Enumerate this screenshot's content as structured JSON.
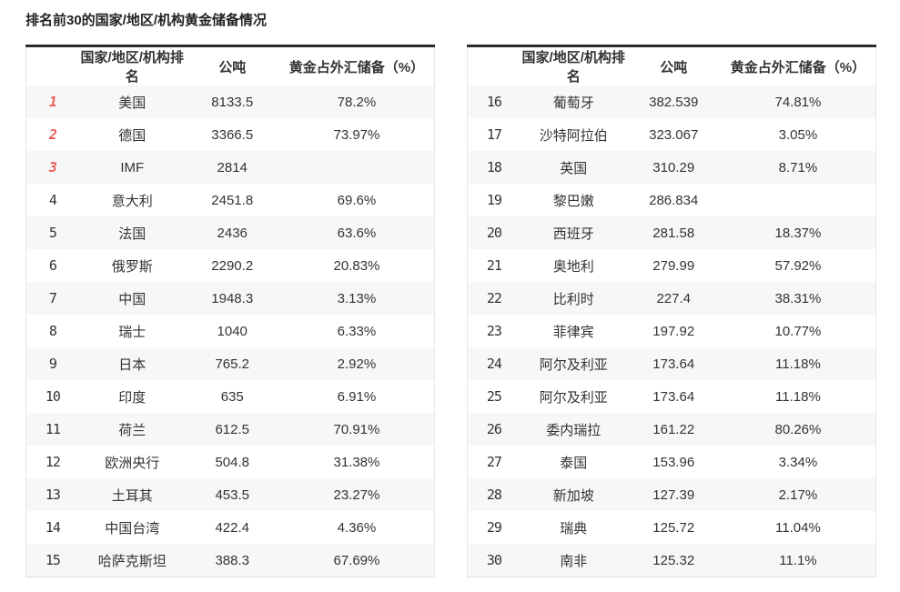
{
  "page": {
    "title": "排名前30的国家/地区/机构黄金储备情况"
  },
  "table": {
    "headers": {
      "rank": "",
      "country": "国家/地区/机构排名",
      "tonnes": "公吨",
      "pct": "黄金占外汇储备（%）"
    }
  },
  "left_rows": [
    {
      "rank": "1",
      "name": "美国",
      "tonnes": "8133.5",
      "pct": "78.2%",
      "highlight": true
    },
    {
      "rank": "2",
      "name": "德国",
      "tonnes": "3366.5",
      "pct": "73.97%",
      "highlight": true
    },
    {
      "rank": "3",
      "name": "IMF",
      "tonnes": "2814",
      "pct": "",
      "highlight": true
    },
    {
      "rank": "4",
      "name": "意大利",
      "tonnes": "2451.8",
      "pct": "69.6%",
      "highlight": false
    },
    {
      "rank": "5",
      "name": "法国",
      "tonnes": "2436",
      "pct": "63.6%",
      "highlight": false
    },
    {
      "rank": "6",
      "name": "俄罗斯",
      "tonnes": "2290.2",
      "pct": "20.83%",
      "highlight": false
    },
    {
      "rank": "7",
      "name": "中国",
      "tonnes": "1948.3",
      "pct": "3.13%",
      "highlight": false
    },
    {
      "rank": "8",
      "name": "瑞士",
      "tonnes": "1040",
      "pct": "6.33%",
      "highlight": false
    },
    {
      "rank": "9",
      "name": "日本",
      "tonnes": "765.2",
      "pct": "2.92%",
      "highlight": false
    },
    {
      "rank": "10",
      "name": "印度",
      "tonnes": "635",
      "pct": "6.91%",
      "highlight": false
    },
    {
      "rank": "11",
      "name": "荷兰",
      "tonnes": "612.5",
      "pct": "70.91%",
      "highlight": false
    },
    {
      "rank": "12",
      "name": "欧洲央行",
      "tonnes": "504.8",
      "pct": "31.38%",
      "highlight": false
    },
    {
      "rank": "13",
      "name": "土耳其",
      "tonnes": "453.5",
      "pct": "23.27%",
      "highlight": false
    },
    {
      "rank": "14",
      "name": "中国台湾",
      "tonnes": "422.4",
      "pct": "4.36%",
      "highlight": false
    },
    {
      "rank": "15",
      "name": "哈萨克斯坦",
      "tonnes": "388.3",
      "pct": "67.69%",
      "highlight": false
    }
  ],
  "right_rows": [
    {
      "rank": "16",
      "name": "葡萄牙",
      "tonnes": "382.539",
      "pct": "74.81%",
      "highlight": false
    },
    {
      "rank": "17",
      "name": "沙特阿拉伯",
      "tonnes": "323.067",
      "pct": "3.05%",
      "highlight": false
    },
    {
      "rank": "18",
      "name": "英国",
      "tonnes": "310.29",
      "pct": "8.71%",
      "highlight": false
    },
    {
      "rank": "19",
      "name": "黎巴嫩",
      "tonnes": "286.834",
      "pct": "",
      "highlight": false
    },
    {
      "rank": "20",
      "name": "西班牙",
      "tonnes": "281.58",
      "pct": "18.37%",
      "highlight": false
    },
    {
      "rank": "21",
      "name": "奥地利",
      "tonnes": "279.99",
      "pct": "57.92%",
      "highlight": false
    },
    {
      "rank": "22",
      "name": "比利时",
      "tonnes": "227.4",
      "pct": "38.31%",
      "highlight": false
    },
    {
      "rank": "23",
      "name": "菲律宾",
      "tonnes": "197.92",
      "pct": "10.77%",
      "highlight": false
    },
    {
      "rank": "24",
      "name": "阿尔及利亚",
      "tonnes": "173.64",
      "pct": "11.18%",
      "highlight": false
    },
    {
      "rank": "25",
      "name": "阿尔及利亚",
      "tonnes": "173.64",
      "pct": "11.18%",
      "highlight": false
    },
    {
      "rank": "26",
      "name": "委内瑞拉",
      "tonnes": "161.22",
      "pct": "80.26%",
      "highlight": false
    },
    {
      "rank": "27",
      "name": "泰国",
      "tonnes": "153.96",
      "pct": "3.34%",
      "highlight": false
    },
    {
      "rank": "28",
      "name": "新加坡",
      "tonnes": "127.39",
      "pct": "2.17%",
      "highlight": false
    },
    {
      "rank": "29",
      "name": "瑞典",
      "tonnes": "125.72",
      "pct": "11.04%",
      "highlight": false
    },
    {
      "rank": "30",
      "name": "南非",
      "tonnes": "125.32",
      "pct": "11.1%",
      "highlight": false
    }
  ],
  "colors": {
    "highlight_rank": "#e85d5d",
    "rank_gray": "#7b7b7b",
    "stripe": "#f7f7f7",
    "top_border": "#2b2b2b",
    "outer_border": "#e8e8e8",
    "text": "#333333"
  },
  "chart_data": {
    "type": "table",
    "title": "排名前30的国家/地区/机构黄金储备情况",
    "columns": [
      "排名",
      "国家/地区/机构",
      "公吨",
      "黄金占外汇储备（%）"
    ],
    "rows": [
      [
        1,
        "美国",
        8133.5,
        "78.2%"
      ],
      [
        2,
        "德国",
        3366.5,
        "73.97%"
      ],
      [
        3,
        "IMF",
        2814,
        ""
      ],
      [
        4,
        "意大利",
        2451.8,
        "69.6%"
      ],
      [
        5,
        "法国",
        2436,
        "63.6%"
      ],
      [
        6,
        "俄罗斯",
        2290.2,
        "20.83%"
      ],
      [
        7,
        "中国",
        1948.3,
        "3.13%"
      ],
      [
        8,
        "瑞士",
        1040,
        "6.33%"
      ],
      [
        9,
        "日本",
        765.2,
        "2.92%"
      ],
      [
        10,
        "印度",
        635,
        "6.91%"
      ],
      [
        11,
        "荷兰",
        612.5,
        "70.91%"
      ],
      [
        12,
        "欧洲央行",
        504.8,
        "31.38%"
      ],
      [
        13,
        "土耳其",
        453.5,
        "23.27%"
      ],
      [
        14,
        "中国台湾",
        422.4,
        "4.36%"
      ],
      [
        15,
        "哈萨克斯坦",
        388.3,
        "67.69%"
      ],
      [
        16,
        "葡萄牙",
        382.539,
        "74.81%"
      ],
      [
        17,
        "沙特阿拉伯",
        323.067,
        "3.05%"
      ],
      [
        18,
        "英国",
        310.29,
        "8.71%"
      ],
      [
        19,
        "黎巴嫩",
        286.834,
        ""
      ],
      [
        20,
        "西班牙",
        281.58,
        "18.37%"
      ],
      [
        21,
        "奥地利",
        279.99,
        "57.92%"
      ],
      [
        22,
        "比利时",
        227.4,
        "38.31%"
      ],
      [
        23,
        "菲律宾",
        197.92,
        "10.77%"
      ],
      [
        24,
        "阿尔及利亚",
        173.64,
        "11.18%"
      ],
      [
        25,
        "阿尔及利亚",
        173.64,
        "11.18%"
      ],
      [
        26,
        "委内瑞拉",
        161.22,
        "80.26%"
      ],
      [
        27,
        "泰国",
        153.96,
        "3.34%"
      ],
      [
        28,
        "新加坡",
        127.39,
        "2.17%"
      ],
      [
        29,
        "瑞典",
        125.72,
        "11.04%"
      ],
      [
        30,
        "南非",
        125.32,
        "11.1%"
      ]
    ],
    "layout": {
      "split": "two side-by-side tables, ranks 1-15 left, 16-30 right",
      "striped_rows": true,
      "top3_rank_color": "#e85d5d"
    }
  }
}
